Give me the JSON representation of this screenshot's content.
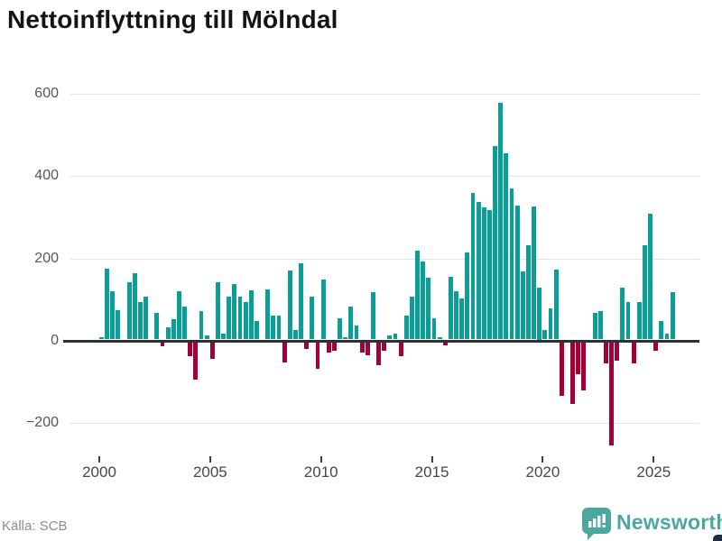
{
  "title": "Nettoinflyttning till Mölndal",
  "source": "Källa: SCB",
  "branding": {
    "name": "Newsworthy",
    "icon": "newsworthy-bubble-chart-icon"
  },
  "colors": {
    "positive_bar": "#0a9e96",
    "negative_bar": "#a10038",
    "gridline": "#e3e3e3",
    "zero_axis": "#2e3134",
    "title_text": "#141414",
    "axis_label_text": "#54575c",
    "source_text": "#8a8d90",
    "brand_teal": "#4ba8a1",
    "brand_navy": "#1d2c4e",
    "background": "#ffffff"
  },
  "chart_data": {
    "type": "bar",
    "title": "Nettoinflyttning till Mölndal",
    "frequency": "quarterly",
    "start_period": "2000Q1",
    "end_period": "2025Q4",
    "grid": "horizontal",
    "legend": "none",
    "ylim": [
      -300,
      650
    ],
    "yticks": [
      600,
      400,
      200,
      0,
      -200
    ],
    "y_tick_labels": [
      "600",
      "400",
      "200",
      "0",
      "−200"
    ],
    "xticks": [
      2000,
      2005,
      2010,
      2015,
      2020,
      2025
    ],
    "x_tick_labels": [
      "2000",
      "2005",
      "2010",
      "2015",
      "2020",
      "2025"
    ],
    "xlabel": "",
    "ylabel": "",
    "values": [
      [
        "2000Q1",
        5
      ],
      [
        "2000Q2",
        172
      ],
      [
        "2000Q3",
        118
      ],
      [
        "2000Q4",
        72
      ],
      [
        "2001Q1",
        0
      ],
      [
        "2001Q2",
        140
      ],
      [
        "2001Q3",
        160
      ],
      [
        "2001Q4",
        90
      ],
      [
        "2002Q1",
        103
      ],
      [
        "2002Q2",
        0
      ],
      [
        "2002Q3",
        65
      ],
      [
        "2002Q4",
        -10
      ],
      [
        "2003Q1",
        30
      ],
      [
        "2003Q2",
        50
      ],
      [
        "2003Q3",
        117
      ],
      [
        "2003Q4",
        80
      ],
      [
        "2004Q1",
        -34
      ],
      [
        "2004Q2",
        -92
      ],
      [
        "2004Q3",
        70
      ],
      [
        "2004Q4",
        10
      ],
      [
        "2005Q1",
        -40
      ],
      [
        "2005Q2",
        140
      ],
      [
        "2005Q3",
        15
      ],
      [
        "2005Q4",
        105
      ],
      [
        "2006Q1",
        135
      ],
      [
        "2006Q2",
        105
      ],
      [
        "2006Q3",
        90
      ],
      [
        "2006Q4",
        120
      ],
      [
        "2007Q1",
        46
      ],
      [
        "2007Q2",
        0
      ],
      [
        "2007Q3",
        122
      ],
      [
        "2007Q4",
        57
      ],
      [
        "2008Q1",
        57
      ],
      [
        "2008Q2",
        -49
      ],
      [
        "2008Q3",
        168
      ],
      [
        "2008Q4",
        22
      ],
      [
        "2009Q1",
        185
      ],
      [
        "2009Q2",
        -16
      ],
      [
        "2009Q3",
        105
      ],
      [
        "2009Q4",
        -65
      ],
      [
        "2010Q1",
        146
      ],
      [
        "2010Q2",
        -25
      ],
      [
        "2010Q3",
        -20
      ],
      [
        "2010Q4",
        52
      ],
      [
        "2011Q1",
        6
      ],
      [
        "2011Q2",
        80
      ],
      [
        "2011Q3",
        33
      ],
      [
        "2011Q4",
        -25
      ],
      [
        "2012Q1",
        -31
      ],
      [
        "2012Q2",
        115
      ],
      [
        "2012Q3",
        -55
      ],
      [
        "2012Q4",
        -20
      ],
      [
        "2013Q1",
        10
      ],
      [
        "2013Q2",
        15
      ],
      [
        "2013Q3",
        -33
      ],
      [
        "2013Q4",
        57
      ],
      [
        "2014Q1",
        103
      ],
      [
        "2014Q2",
        215
      ],
      [
        "2014Q3",
        190
      ],
      [
        "2014Q4",
        150
      ],
      [
        "2015Q1",
        52
      ],
      [
        "2015Q2",
        5
      ],
      [
        "2015Q3",
        -7
      ],
      [
        "2015Q4",
        152
      ],
      [
        "2016Q1",
        117
      ],
      [
        "2016Q2",
        100
      ],
      [
        "2016Q3",
        212
      ],
      [
        "2016Q4",
        355
      ],
      [
        "2017Q1",
        335
      ],
      [
        "2017Q2",
        320
      ],
      [
        "2017Q3",
        315
      ],
      [
        "2017Q4",
        470
      ],
      [
        "2018Q1",
        575
      ],
      [
        "2018Q2",
        452
      ],
      [
        "2018Q3",
        368
      ],
      [
        "2018Q4",
        325
      ],
      [
        "2019Q1",
        165
      ],
      [
        "2019Q2",
        230
      ],
      [
        "2019Q3",
        324
      ],
      [
        "2019Q4",
        125
      ],
      [
        "2020Q1",
        23
      ],
      [
        "2020Q2",
        75
      ],
      [
        "2020Q3",
        170
      ],
      [
        "2020Q4",
        -130
      ],
      [
        "2021Q1",
        0
      ],
      [
        "2021Q2",
        -150
      ],
      [
        "2021Q3",
        -78
      ],
      [
        "2021Q4",
        -118
      ],
      [
        "2022Q1",
        0
      ],
      [
        "2022Q2",
        65
      ],
      [
        "2022Q3",
        70
      ],
      [
        "2022Q4",
        -52
      ],
      [
        "2023Q1",
        -250
      ],
      [
        "2023Q2",
        -45
      ],
      [
        "2023Q3",
        125
      ],
      [
        "2023Q4",
        90
      ],
      [
        "2024Q1",
        -52
      ],
      [
        "2024Q2",
        92
      ],
      [
        "2024Q3",
        230
      ],
      [
        "2024Q4",
        305
      ],
      [
        "2025Q1",
        -20
      ],
      [
        "2025Q2",
        45
      ],
      [
        "2025Q3",
        15
      ],
      [
        "2025Q4",
        115
      ]
    ]
  }
}
